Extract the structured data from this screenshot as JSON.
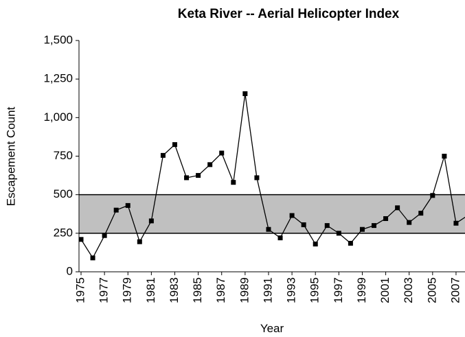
{
  "chart_data": {
    "type": "line",
    "title": "Keta River -- Aerial Helicopter Index",
    "x_label": "Year",
    "y_label": "Escapement Count",
    "x": [
      1975,
      1976,
      1977,
      1978,
      1979,
      1980,
      1981,
      1982,
      1983,
      1984,
      1985,
      1986,
      1987,
      1988,
      1989,
      1990,
      1991,
      1992,
      1993,
      1994,
      1995,
      1996,
      1997,
      1998,
      1999,
      2000,
      2001,
      2002,
      2003,
      2004,
      2005,
      2006,
      2007,
      2008
    ],
    "series": [
      {
        "name": "Escapement Count",
        "color": "#000000",
        "values": [
          210,
          90,
          235,
          400,
          430,
          195,
          330,
          755,
          825,
          610,
          625,
          695,
          770,
          580,
          1155,
          610,
          275,
          220,
          365,
          305,
          180,
          300,
          250,
          185,
          275,
          300,
          345,
          415,
          320,
          380,
          495,
          750,
          315,
          365
        ]
      }
    ],
    "band": [
      250,
      500
    ],
    "band_color": "#c0c0c0",
    "xlim": [
      1975,
      2008
    ],
    "xticks": [
      1975,
      1977,
      1979,
      1981,
      1983,
      1985,
      1987,
      1989,
      1991,
      1993,
      1995,
      1997,
      1999,
      2001,
      2003,
      2005,
      2007
    ],
    "ylim": [
      0,
      1500
    ],
    "yticks": [
      0,
      250,
      500,
      750,
      {
        "value": 1000,
        "label": "1,000"
      },
      {
        "value": 1250,
        "label": "1,250"
      },
      {
        "value": 1500,
        "label": "1,500"
      }
    ],
    "grid": false
  }
}
